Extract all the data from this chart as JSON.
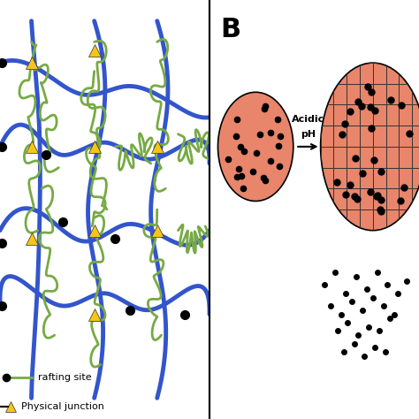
{
  "fig_width": 4.74,
  "fig_height": 4.74,
  "dpi": 100,
  "bg_color": "#ffffff",
  "panel_B_label": "B",
  "panel_B_label_fontsize": 22,
  "blue_color": "#3355cc",
  "green_color": "#77aa44",
  "yellow_color": "#f5c518",
  "black_color": "#111111",
  "salmon_color": "#e8856a",
  "grid_line_color": "#333333",
  "legend_grafting_text": "rafting site",
  "legend_junction_text": "Physical junction",
  "arrow_text_line1": "Acidic",
  "arrow_text_line2": "pH"
}
